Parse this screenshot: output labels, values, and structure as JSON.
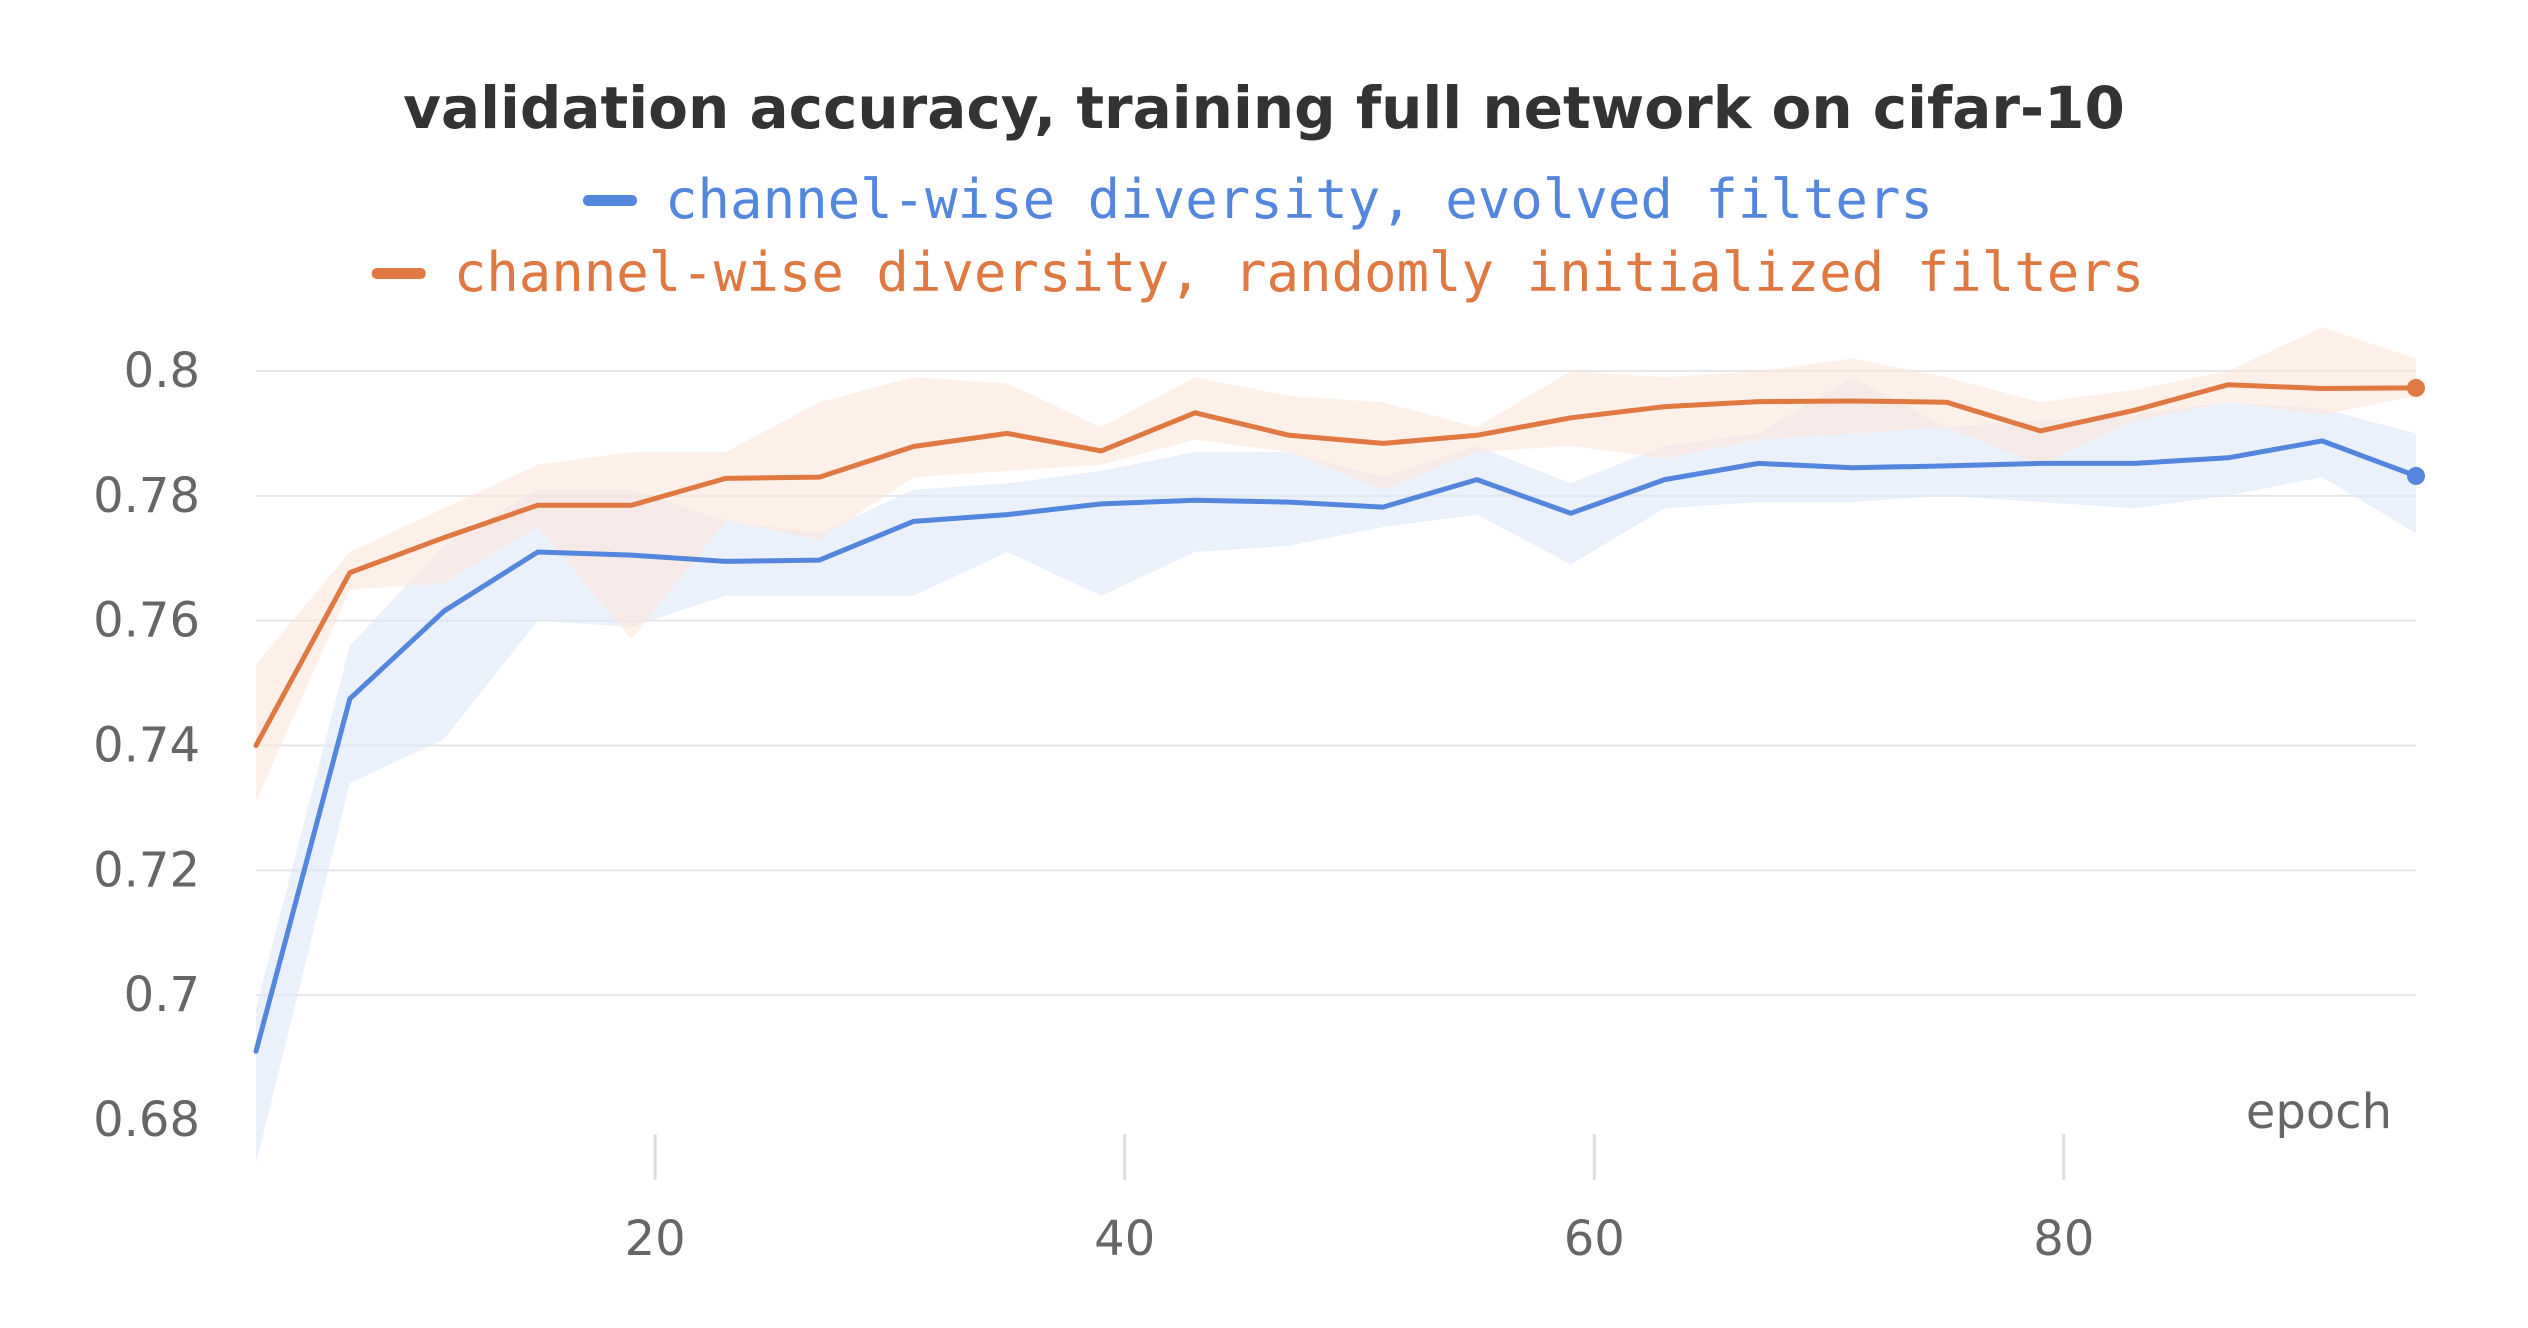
{
  "chart_data": {
    "type": "line",
    "title": "validation accuracy, training full network on cifar-10",
    "xlabel": "epoch",
    "ylabel": "",
    "xlim": [
      3,
      95
    ],
    "ylim": [
      0.68,
      0.8
    ],
    "x_ticks": [
      20,
      40,
      60,
      80
    ],
    "y_ticks": [
      0.68,
      0.7,
      0.72,
      0.74,
      0.76,
      0.78,
      0.8
    ],
    "grid": true,
    "legend_position": "top",
    "x": [
      3,
      7,
      11,
      15,
      19,
      23,
      27,
      31,
      35,
      39,
      43,
      47,
      51,
      55,
      59,
      63,
      67,
      71,
      75,
      79,
      83,
      87,
      91,
      95
    ],
    "series": [
      {
        "name": "channel-wise diversity, evolved filters",
        "color": "#5387dd",
        "band_color": "#dce8f9",
        "values": [
          0.691,
          0.7475,
          0.7615,
          0.771,
          0.7705,
          0.7695,
          0.7697,
          0.7759,
          0.777,
          0.7787,
          0.7793,
          0.779,
          0.7782,
          0.7826,
          0.7772,
          0.7826,
          0.7852,
          0.7845,
          0.7848,
          0.7852,
          0.7852,
          0.7861,
          0.7888,
          0.7832
        ],
        "upper": [
          0.698,
          0.756,
          0.772,
          0.781,
          0.781,
          0.776,
          0.774,
          0.781,
          0.782,
          0.784,
          0.787,
          0.787,
          0.783,
          0.788,
          0.782,
          0.788,
          0.79,
          0.799,
          0.791,
          0.792,
          0.793,
          0.795,
          0.794,
          0.79
        ],
        "lower": [
          0.673,
          0.734,
          0.741,
          0.76,
          0.759,
          0.764,
          0.764,
          0.764,
          0.771,
          0.764,
          0.771,
          0.772,
          0.775,
          0.777,
          0.769,
          0.778,
          0.779,
          0.779,
          0.78,
          0.779,
          0.778,
          0.78,
          0.783,
          0.774
        ]
      },
      {
        "name": "channel-wise diversity, randomly initialized filters",
        "color": "#df7941",
        "band_color": "#fbe6da",
        "values": [
          0.74,
          0.7677,
          0.7733,
          0.7785,
          0.7785,
          0.7828,
          0.783,
          0.7879,
          0.79,
          0.7872,
          0.7933,
          0.7897,
          0.7884,
          0.7897,
          0.7925,
          0.7943,
          0.7951,
          0.7952,
          0.795,
          0.7904,
          0.7937,
          0.7978,
          0.7972,
          0.7973
        ],
        "upper": [
          0.753,
          0.771,
          0.778,
          0.785,
          0.787,
          0.787,
          0.795,
          0.799,
          0.798,
          0.791,
          0.799,
          0.796,
          0.795,
          0.791,
          0.8,
          0.799,
          0.8,
          0.802,
          0.799,
          0.795,
          0.797,
          0.8,
          0.807,
          0.802
        ],
        "lower": [
          0.731,
          0.765,
          0.766,
          0.775,
          0.757,
          0.776,
          0.773,
          0.783,
          0.784,
          0.785,
          0.789,
          0.787,
          0.781,
          0.787,
          0.788,
          0.786,
          0.789,
          0.79,
          0.791,
          0.785,
          0.792,
          0.795,
          0.793,
          0.796
        ]
      }
    ]
  }
}
